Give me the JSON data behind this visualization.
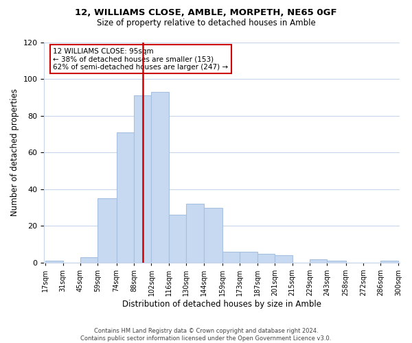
{
  "title": "12, WILLIAMS CLOSE, AMBLE, MORPETH, NE65 0GF",
  "subtitle": "Size of property relative to detached houses in Amble",
  "xlabel": "Distribution of detached houses by size in Amble",
  "ylabel": "Number of detached properties",
  "footer_lines": [
    "Contains HM Land Registry data © Crown copyright and database right 2024.",
    "Contains public sector information licensed under the Open Government Licence v3.0."
  ],
  "bar_labels": [
    "17sqm",
    "31sqm",
    "45sqm",
    "59sqm",
    "74sqm",
    "88sqm",
    "102sqm",
    "116sqm",
    "130sqm",
    "144sqm",
    "159sqm",
    "173sqm",
    "187sqm",
    "201sqm",
    "215sqm",
    "229sqm",
    "243sqm",
    "258sqm",
    "272sqm",
    "286sqm",
    "300sqm"
  ],
  "bar_values": [
    1,
    0,
    3,
    35,
    71,
    91,
    93,
    26,
    32,
    30,
    6,
    6,
    5,
    4,
    0,
    2,
    1,
    0,
    0,
    1
  ],
  "bar_color": "#c6d9f1",
  "bar_edge_color": "#a8c0e0",
  "ylim": [
    0,
    120
  ],
  "yticks": [
    0,
    20,
    40,
    60,
    80,
    100,
    120
  ],
  "property_line_x": 95,
  "property_line_color": "#cc0000",
  "annotation_text": "12 WILLIAMS CLOSE: 95sqm\n← 38% of detached houses are smaller (153)\n62% of semi-detached houses are larger (247) →",
  "annotation_box_color": "#ffffff",
  "annotation_box_edge": "#cc0000",
  "bin_edges": [
    17,
    31,
    45,
    59,
    74,
    88,
    102,
    116,
    130,
    144,
    159,
    173,
    187,
    201,
    215,
    229,
    243,
    258,
    272,
    286,
    300
  ]
}
